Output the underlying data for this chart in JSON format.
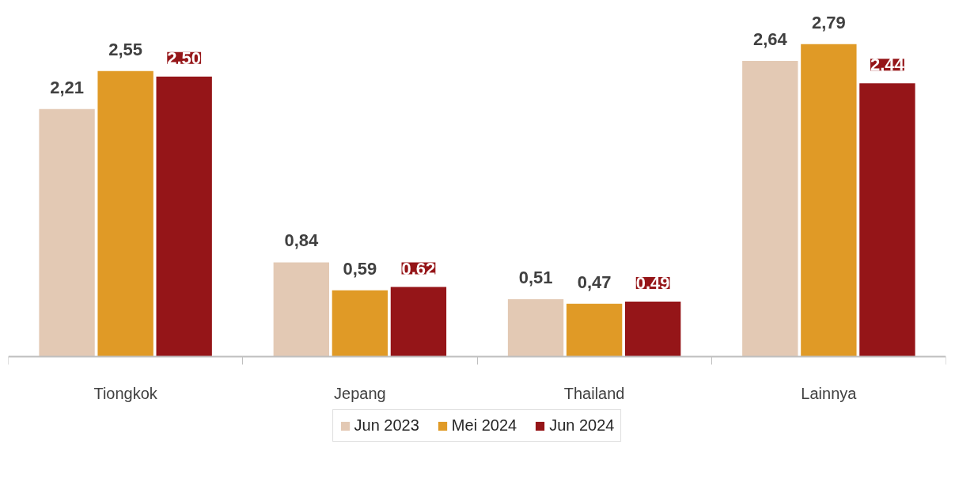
{
  "chart_data": {
    "type": "bar",
    "categories": [
      "Tiongkok",
      "Jepang",
      "Thailand",
      "Lainnya"
    ],
    "series": [
      {
        "name": "Jun 2023",
        "color": "#e3c9b4",
        "values": [
          2.21,
          0.84,
          0.51,
          2.64
        ],
        "value_labels": [
          "2,21",
          "0,84",
          "0,51",
          "2,64"
        ]
      },
      {
        "name": "Mei 2024",
        "color": "#e09a26",
        "values": [
          2.55,
          0.59,
          0.47,
          2.79
        ],
        "value_labels": [
          "2,55",
          "0,59",
          "0,47",
          "2,79"
        ]
      },
      {
        "name": "Jun 2024",
        "color": "#951518",
        "values": [
          2.5,
          0.62,
          0.49,
          2.44
        ],
        "value_labels": [
          "2,50",
          "0,62",
          "0,49",
          "2,44"
        ]
      }
    ],
    "legend": "bottom"
  }
}
